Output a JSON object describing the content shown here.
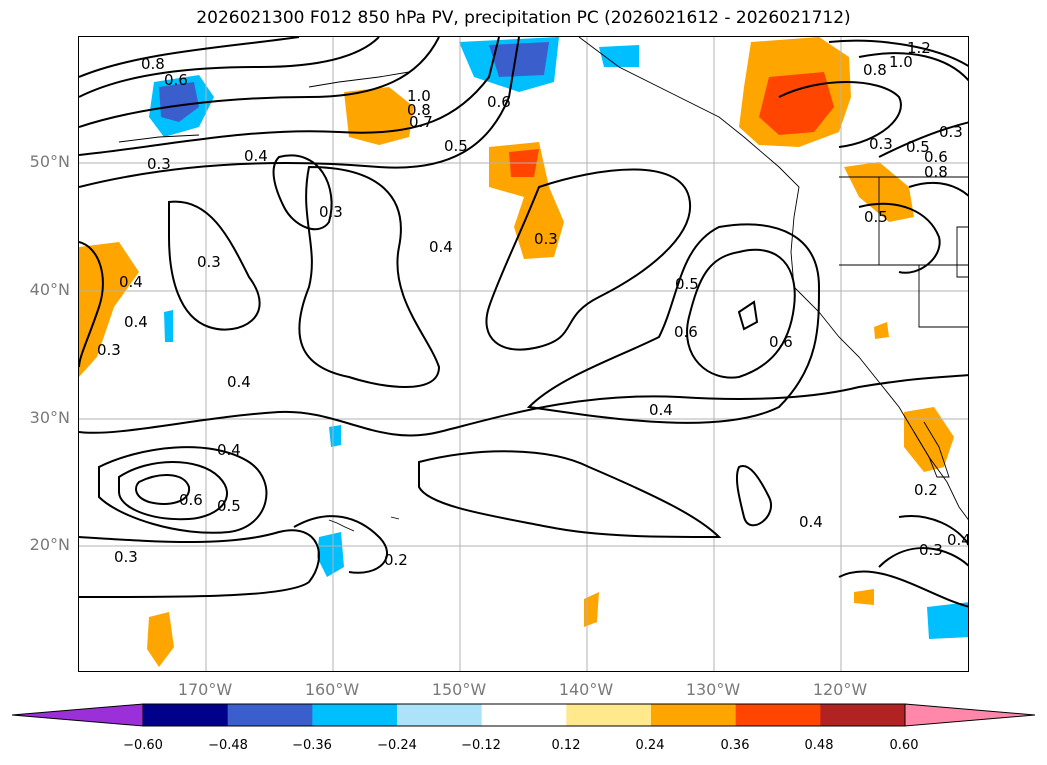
{
  "title": "2026021300 F012 850 hPa PV, precipitation PC (2026021612 - 2026021712)",
  "map": {
    "lat_labels": [
      "50°N",
      "40°N",
      "30°N",
      "20°N"
    ],
    "lon_labels": [
      "170°W",
      "160°W",
      "150°W",
      "140°W",
      "130°W",
      "120°W"
    ],
    "contour_labels": [
      "0.8",
      "0.6",
      "0.3",
      "0.4",
      "0.3",
      "0.3",
      "0.4",
      "0.3",
      "0.4",
      "0.4",
      "0.6",
      "0.5",
      "0.6",
      "0.4",
      "0.2",
      "0.3",
      "0.5",
      "0.6",
      "0.4",
      "0.5",
      "0.4",
      "0.3",
      "0.4",
      "0.2",
      "0.3",
      "0.7",
      "0.8",
      "1.0",
      "0.6",
      "0.5",
      "0.3",
      "0.5",
      "0.6",
      "0.3",
      "0.8",
      "1.0",
      "1.2",
      "0.8",
      "0.4"
    ]
  },
  "colorbar": {
    "colors": [
      "#9b30d9",
      "#00008b",
      "#3a5fcd",
      "#00bfff",
      "#ade3fa",
      "#ffffff",
      "#ffe98c",
      "#ffa500",
      "#ff4500",
      "#b22222",
      "#ff88aa"
    ],
    "ticks": [
      "−0.60",
      "−0.48",
      "−0.36",
      "−0.24",
      "−0.12",
      "0.12",
      "0.24",
      "0.36",
      "0.48",
      "0.60"
    ]
  }
}
